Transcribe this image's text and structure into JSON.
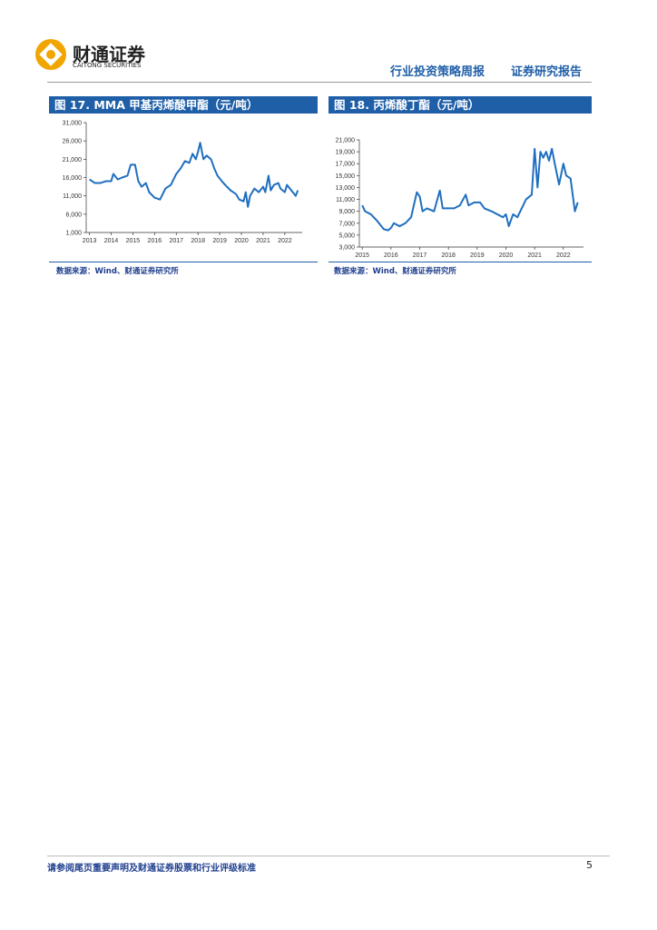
{
  "header": {
    "company": "财通证券",
    "company_en": "CAITONG SECURITIES",
    "report_type": "行业投资策略周报",
    "report_label": "证券研究报告"
  },
  "chart_data": [
    {
      "type": "line",
      "title": "图 17. MMA 甲基丙烯酸甲酯（元/吨）",
      "source": "数据来源：Wind、财通证券研究所",
      "color": "#1f6fc0",
      "x": [
        2013,
        2013.25,
        2013.5,
        2013.75,
        2014,
        2014.1,
        2014.3,
        2014.5,
        2014.75,
        2014.9,
        2015.1,
        2015.25,
        2015.4,
        2015.6,
        2015.75,
        2016,
        2016.25,
        2016.5,
        2016.75,
        2017,
        2017.2,
        2017.4,
        2017.6,
        2017.75,
        2017.9,
        2018,
        2018.1,
        2018.25,
        2018.4,
        2018.6,
        2018.75,
        2018.9,
        2019.1,
        2019.25,
        2019.5,
        2019.75,
        2019.9,
        2020.1,
        2020.2,
        2020.3,
        2020.4,
        2020.6,
        2020.8,
        2021,
        2021.1,
        2021.25,
        2021.35,
        2021.5,
        2021.7,
        2021.8,
        2022,
        2022.1,
        2022.3,
        2022.5,
        2022.6
      ],
      "values": [
        15500,
        14500,
        14500,
        15000,
        15000,
        17000,
        15500,
        16000,
        16500,
        19500,
        19500,
        15000,
        13500,
        14500,
        12000,
        10500,
        10000,
        13000,
        14000,
        17000,
        18500,
        20500,
        20000,
        22500,
        21000,
        23000,
        25500,
        21000,
        22000,
        21000,
        18500,
        16500,
        15000,
        14000,
        12500,
        11500,
        10000,
        9500,
        12000,
        8000,
        11000,
        13000,
        12000,
        13500,
        12000,
        16500,
        12500,
        14000,
        14500,
        13000,
        12000,
        14000,
        12500,
        11000,
        12500
      ],
      "xlim": [
        2012.85,
        2022.8
      ],
      "xticks": [
        2013,
        2014,
        2015,
        2016,
        2017,
        2018,
        2019,
        2020,
        2021,
        2022
      ],
      "ylim": [
        1000,
        31000
      ],
      "yticks": [
        {
          "value": 1000,
          "label": "1,000"
        },
        {
          "value": 6000,
          "label": "6,000"
        },
        {
          "value": 11000,
          "label": "11,000"
        },
        {
          "value": 16000,
          "label": "16,000"
        },
        {
          "value": 21000,
          "label": "21,000"
        },
        {
          "value": 26000,
          "label": "26,000"
        },
        {
          "value": 31000,
          "label": "31,000"
        }
      ]
    },
    {
      "type": "line",
      "title": "图 18. 丙烯酸丁酯（元/吨）",
      "source": "数据来源：Wind、财通证券研究所",
      "color": "#1f6fc0",
      "x": [
        2015,
        2015.1,
        2015.3,
        2015.5,
        2015.75,
        2015.9,
        2016,
        2016.1,
        2016.3,
        2016.5,
        2016.7,
        2016.9,
        2017,
        2017.1,
        2017.25,
        2017.5,
        2017.7,
        2017.8,
        2018,
        2018.2,
        2018.4,
        2018.6,
        2018.7,
        2018.9,
        2019.1,
        2019.25,
        2019.5,
        2019.7,
        2019.9,
        2020,
        2020.1,
        2020.25,
        2020.4,
        2020.5,
        2020.7,
        2020.9,
        2021,
        2021.1,
        2021.2,
        2021.3,
        2021.4,
        2021.5,
        2021.6,
        2021.7,
        2021.85,
        2022,
        2022.1,
        2022.25,
        2022.4,
        2022.5
      ],
      "values": [
        10000,
        9000,
        8500,
        7500,
        6000,
        5800,
        6200,
        7000,
        6500,
        7000,
        8000,
        12200,
        11500,
        9000,
        9500,
        9000,
        12500,
        9500,
        9500,
        9500,
        10000,
        11800,
        10000,
        10500,
        10500,
        9500,
        9000,
        8500,
        8000,
        8500,
        6500,
        8500,
        8000,
        9000,
        11000,
        11800,
        19500,
        13000,
        19000,
        18000,
        19000,
        17500,
        19500,
        17000,
        13500,
        17000,
        15000,
        14500,
        9000,
        10500
      ],
      "xlim": [
        2014.9,
        2022.7
      ],
      "xticks": [
        2015,
        2016,
        2017,
        2018,
        2019,
        2020,
        2021,
        2022
      ],
      "ylim": [
        3000,
        21000
      ],
      "yticks": [
        {
          "value": 3000,
          "label": "3,000"
        },
        {
          "value": 5000,
          "label": "5,000"
        },
        {
          "value": 7000,
          "label": "7,000"
        },
        {
          "value": 9000,
          "label": "9,000"
        },
        {
          "value": 11000,
          "label": "11,000"
        },
        {
          "value": 13000,
          "label": "13,000"
        },
        {
          "value": 15000,
          "label": "15,000"
        },
        {
          "value": 17000,
          "label": "17,000"
        },
        {
          "value": 19000,
          "label": "19,000"
        },
        {
          "value": 21000,
          "label": "21,000"
        }
      ]
    }
  ],
  "footer": {
    "disclaimer": "请参阅尾页重要声明及财通证券股票和行业评级标准",
    "page": 5
  }
}
